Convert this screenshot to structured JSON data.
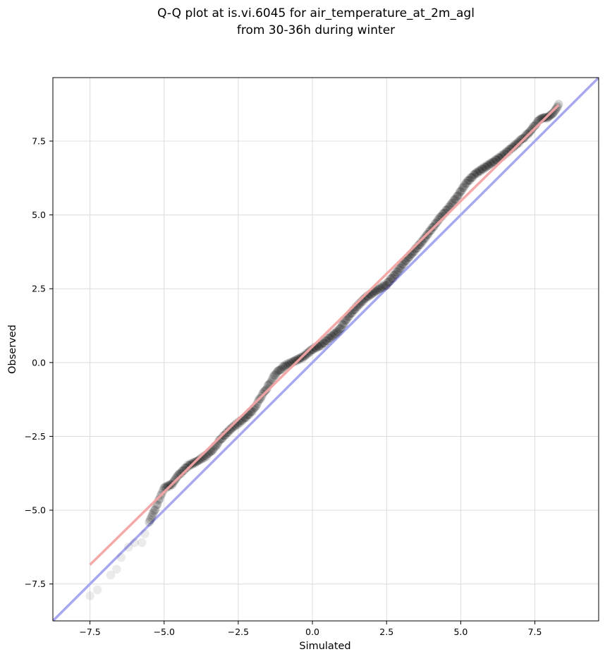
{
  "chart_data": {
    "type": "scatter",
    "title": "Q-Q plot at is.vi.6045 for air_temperature_at_2m_agl",
    "subtitle": "from 30-36h during winter",
    "xlabel": "Simulated",
    "ylabel": "Observed",
    "xlim": [
      -8.75,
      9.65
    ],
    "ylim": [
      -8.75,
      9.65
    ],
    "x_ticks": [
      -7.5,
      -5.0,
      -2.5,
      0.0,
      2.5,
      5.0,
      7.5
    ],
    "x_tick_labels": [
      "−7.5",
      "−5.0",
      "−2.5",
      "0.0",
      "2.5",
      "5.0",
      "7.5"
    ],
    "y_ticks": [
      -7.5,
      -5.0,
      -2.5,
      0.0,
      2.5,
      5.0,
      7.5
    ],
    "y_tick_labels": [
      "−7.5",
      "−5.0",
      "−2.5",
      "0.0",
      "2.5",
      "5.0",
      "7.5"
    ],
    "grid": true,
    "colors": {
      "points": "#000000",
      "fit_line": "#f4a3a3",
      "identity_line": "#a8a8f0"
    },
    "identity_line": {
      "slope": 1,
      "intercept": 0
    },
    "fit_line": {
      "x": [
        -7.5,
        8.3
      ],
      "y": [
        -6.85,
        8.72
      ]
    },
    "quantile_curve": [
      [
        -7.5,
        -7.9
      ],
      [
        -7.25,
        -7.7
      ],
      [
        -6.8,
        -7.2
      ],
      [
        -6.6,
        -7.0
      ],
      [
        -6.45,
        -6.6
      ],
      [
        -6.2,
        -6.25
      ],
      [
        -6.0,
        -6.1
      ],
      [
        -5.75,
        -6.1
      ],
      [
        -5.65,
        -5.8
      ],
      [
        -5.5,
        -5.4
      ],
      [
        -5.3,
        -4.95
      ],
      [
        -5.15,
        -4.6
      ],
      [
        -5.0,
        -4.25
      ],
      [
        -4.7,
        -4.1
      ],
      [
        -4.5,
        -3.8
      ],
      [
        -4.2,
        -3.5
      ],
      [
        -3.9,
        -3.35
      ],
      [
        -3.5,
        -3.1
      ],
      [
        -3.25,
        -2.8
      ],
      [
        -3.0,
        -2.5
      ],
      [
        -2.7,
        -2.2
      ],
      [
        -2.3,
        -1.9
      ],
      [
        -2.0,
        -1.6
      ],
      [
        -1.75,
        -1.2
      ],
      [
        -1.5,
        -0.8
      ],
      [
        -1.25,
        -0.4
      ],
      [
        -1.0,
        -0.15
      ],
      [
        -0.6,
        0.05
      ],
      [
        -0.3,
        0.2
      ],
      [
        0.0,
        0.45
      ],
      [
        0.3,
        0.6
      ],
      [
        0.6,
        0.85
      ],
      [
        0.9,
        1.1
      ],
      [
        1.2,
        1.55
      ],
      [
        1.5,
        1.9
      ],
      [
        1.8,
        2.2
      ],
      [
        2.1,
        2.4
      ],
      [
        2.5,
        2.65
      ],
      [
        2.8,
        3.0
      ],
      [
        3.1,
        3.4
      ],
      [
        3.4,
        3.75
      ],
      [
        3.7,
        4.1
      ],
      [
        4.0,
        4.5
      ],
      [
        4.3,
        4.9
      ],
      [
        4.6,
        5.25
      ],
      [
        4.9,
        5.65
      ],
      [
        5.2,
        6.1
      ],
      [
        5.5,
        6.4
      ],
      [
        5.8,
        6.6
      ],
      [
        6.1,
        6.8
      ],
      [
        6.4,
        7.0
      ],
      [
        6.7,
        7.25
      ],
      [
        7.0,
        7.5
      ],
      [
        7.25,
        7.75
      ],
      [
        7.45,
        8.0
      ],
      [
        7.7,
        8.25
      ],
      [
        7.9,
        8.3
      ],
      [
        8.1,
        8.45
      ],
      [
        8.3,
        8.75
      ]
    ]
  }
}
